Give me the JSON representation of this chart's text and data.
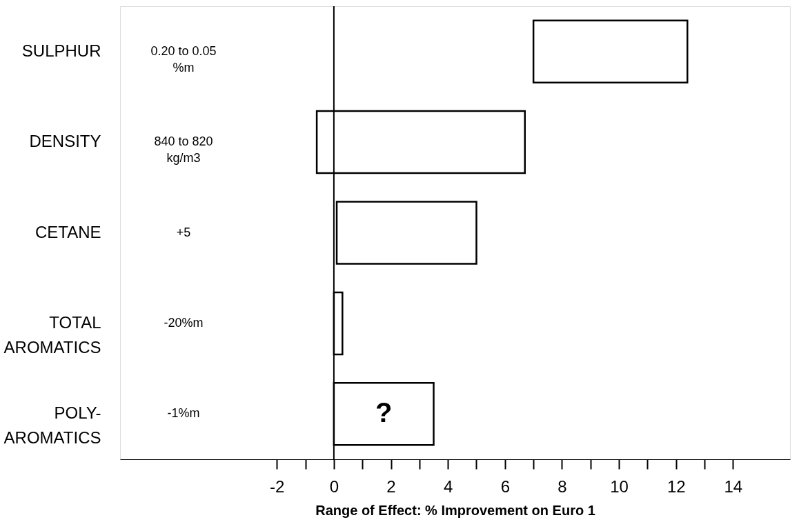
{
  "chart_data": {
    "type": "bar",
    "orientation": "horizontal",
    "categories": [
      "SULPHUR",
      "DENSITY",
      "CETANE",
      "TOTAL\nAROMATICS",
      "POLY-\nAROMATICS"
    ],
    "series": [
      {
        "color": "#ffffff",
        "values": [
          5.4,
          7.3,
          4.9,
          0.3,
          3.5
        ],
        "base": [
          7,
          -0.6,
          0.1,
          0,
          0
        ]
      }
    ],
    "xlabel": "Range of Effect: % Improvement on Euro 1",
    "xlim": [
      -7.5,
      16
    ],
    "xticks": [
      -2,
      {
        "value": -1,
        "label": null
      },
      0,
      {
        "value": 1,
        "label": null
      },
      2,
      {
        "value": 3,
        "label": null
      },
      4,
      {
        "value": 5,
        "label": null
      },
      6,
      {
        "value": 7,
        "label": null
      },
      8,
      {
        "value": 9,
        "label": null
      },
      10,
      {
        "value": 11,
        "label": null
      },
      12,
      {
        "value": 13,
        "label": null
      },
      14
    ],
    "ref_lines": [
      {
        "axis": "x",
        "value": 0,
        "color": "#000000"
      }
    ],
    "annotations": [
      "0.20 to 0.05\n%m",
      "840 to 820\nkg/m3",
      "+5",
      "-20%m",
      "-1%m",
      "?"
    ],
    "grid": false
  }
}
